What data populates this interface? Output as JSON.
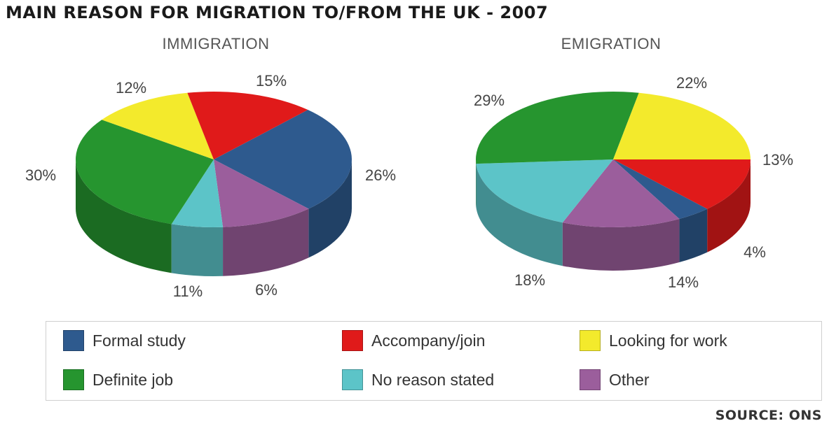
{
  "title": "MAIN REASON FOR MIGRATION TO/FROM THE UK - 2007",
  "source": "SOURCE: ONS",
  "colors": {
    "Formal study": "#2e5a8e",
    "Accompany/join": "#e01a1a",
    "Looking for work": "#f3ea2c",
    "Definite job": "#26952f",
    "No reason stated": "#5cc4c8",
    "Other": "#9b5e9c"
  },
  "legend": [
    {
      "label": "Formal study"
    },
    {
      "label": "Accompany/join"
    },
    {
      "label": "Looking for work"
    },
    {
      "label": "Definite job"
    },
    {
      "label": "No reason stated"
    },
    {
      "label": "Other"
    }
  ],
  "chart_data": [
    {
      "type": "pie",
      "title": "IMMIGRATION",
      "slices": [
        {
          "category": "Formal study",
          "value": 26,
          "label": "26%"
        },
        {
          "category": "Other",
          "value": 11,
          "label": "11%"
        },
        {
          "category": "No reason stated",
          "value": 6,
          "label": "6%"
        },
        {
          "category": "Definite job",
          "value": 30,
          "label": "30%"
        },
        {
          "category": "Looking for work",
          "value": 12,
          "label": "12%"
        },
        {
          "category": "Accompany/join",
          "value": 15,
          "label": "15%"
        }
      ]
    },
    {
      "type": "pie",
      "title": "EMIGRATION",
      "slices": [
        {
          "category": "Accompany/join",
          "value": 13,
          "label": "13%"
        },
        {
          "category": "Formal study",
          "value": 4,
          "label": "4%"
        },
        {
          "category": "Other",
          "value": 14,
          "label": "14%"
        },
        {
          "category": "No reason stated",
          "value": 18,
          "label": "18%"
        },
        {
          "category": "Definite job",
          "value": 29,
          "label": "29%"
        },
        {
          "category": "Looking for work",
          "value": 22,
          "label": "22%"
        }
      ]
    }
  ]
}
